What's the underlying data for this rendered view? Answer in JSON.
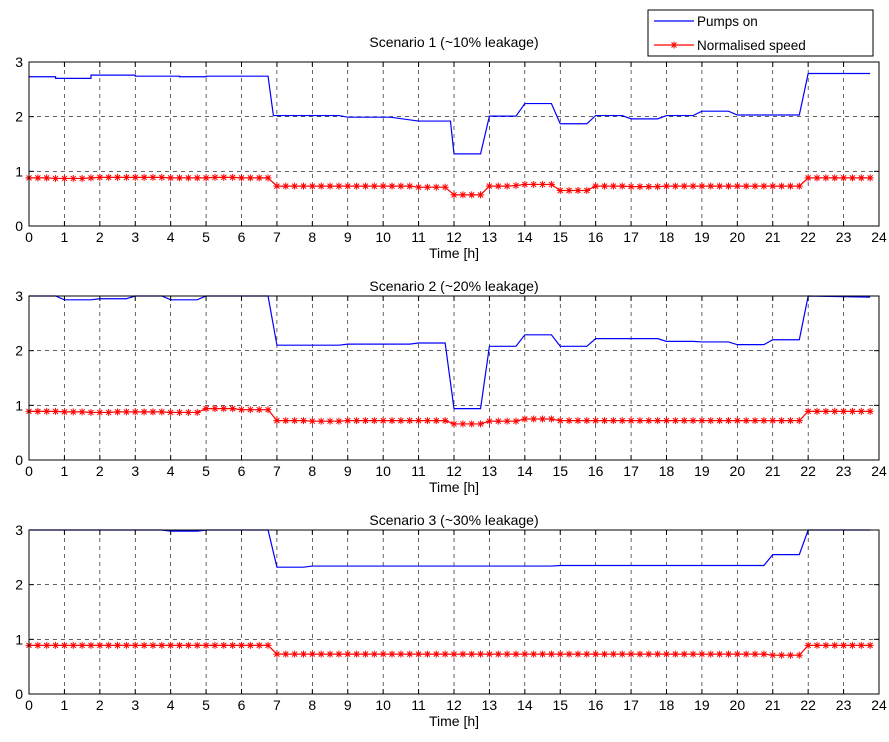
{
  "legend": {
    "placement": "top-right",
    "entries": [
      {
        "label": "Pumps on",
        "color": "#0000ff",
        "marker": "none"
      },
      {
        "label": "Normalised speed",
        "color": "#ff0000",
        "marker": "star"
      }
    ]
  },
  "chart_data": [
    {
      "type": "line",
      "title": "Scenario 1 (~10% leakage)",
      "xlabel": "Time [h]",
      "ylabel": "",
      "xlim": [
        0,
        24
      ],
      "ylim": [
        0,
        3
      ],
      "grid": true,
      "xticks": [
        0,
        1,
        2,
        3,
        4,
        5,
        6,
        7,
        8,
        9,
        10,
        11,
        12,
        13,
        14,
        15,
        16,
        17,
        18,
        19,
        20,
        21,
        22,
        23,
        24
      ],
      "yticks": [
        0,
        1,
        2,
        3
      ],
      "series": [
        {
          "name": "Pumps on",
          "color": "#0000ff",
          "x": [
            0,
            0.75,
            0.75,
            1.75,
            1.75,
            3,
            3,
            4.25,
            4.25,
            5,
            5,
            6.75,
            6.9,
            7,
            8,
            8.75,
            9,
            10.2,
            11,
            11.9,
            12,
            12.75,
            13,
            13.75,
            14,
            14.75,
            15,
            15.75,
            16,
            16.75,
            17,
            17.75,
            18,
            18.75,
            19,
            19.75,
            20,
            21,
            21.75,
            22,
            23.75
          ],
          "y": [
            2.73,
            2.73,
            2.7,
            2.7,
            2.76,
            2.76,
            2.74,
            2.74,
            2.73,
            2.73,
            2.74,
            2.74,
            2.02,
            2.02,
            2.02,
            2.02,
            1.99,
            1.99,
            1.92,
            1.92,
            1.32,
            1.32,
            2.01,
            2.01,
            2.24,
            2.24,
            1.87,
            1.87,
            2.02,
            2.02,
            1.96,
            1.96,
            2.02,
            2.02,
            2.1,
            2.1,
            2.03,
            2.03,
            2.03,
            2.79,
            2.79
          ]
        },
        {
          "name": "Normalised speed",
          "color": "#ff0000",
          "x": [
            0,
            0.25,
            0.5,
            0.75,
            1,
            1.25,
            1.5,
            1.75,
            2,
            2.25,
            2.5,
            2.75,
            3,
            3.25,
            3.5,
            3.75,
            4,
            4.25,
            4.5,
            4.75,
            5,
            5.25,
            5.5,
            5.75,
            6,
            6.25,
            6.5,
            6.75,
            7,
            7.25,
            7.5,
            7.75,
            8,
            8.25,
            8.5,
            8.75,
            9,
            9.25,
            9.5,
            9.75,
            10,
            10.25,
            10.5,
            10.75,
            11,
            11.25,
            11.5,
            11.75,
            12,
            12.25,
            12.5,
            12.75,
            13,
            13.25,
            13.5,
            13.75,
            14,
            14.25,
            14.5,
            14.75,
            15,
            15.25,
            15.5,
            15.75,
            16,
            16.25,
            16.5,
            16.75,
            17,
            17.25,
            17.5,
            17.75,
            18,
            18.25,
            18.5,
            18.75,
            19,
            19.25,
            19.5,
            19.75,
            20,
            20.25,
            20.5,
            20.75,
            21,
            21.25,
            21.5,
            21.75,
            22,
            22.25,
            22.5,
            22.75,
            23,
            23.25,
            23.5,
            23.75
          ],
          "y": [
            0.88,
            0.88,
            0.88,
            0.87,
            0.87,
            0.87,
            0.87,
            0.88,
            0.89,
            0.89,
            0.89,
            0.89,
            0.89,
            0.89,
            0.89,
            0.89,
            0.88,
            0.88,
            0.88,
            0.88,
            0.88,
            0.89,
            0.89,
            0.89,
            0.88,
            0.88,
            0.88,
            0.88,
            0.73,
            0.73,
            0.73,
            0.73,
            0.73,
            0.73,
            0.73,
            0.73,
            0.73,
            0.73,
            0.73,
            0.73,
            0.73,
            0.73,
            0.73,
            0.73,
            0.71,
            0.71,
            0.71,
            0.71,
            0.57,
            0.57,
            0.57,
            0.57,
            0.73,
            0.73,
            0.73,
            0.74,
            0.76,
            0.76,
            0.76,
            0.76,
            0.65,
            0.65,
            0.65,
            0.65,
            0.73,
            0.73,
            0.73,
            0.73,
            0.72,
            0.72,
            0.72,
            0.72,
            0.73,
            0.73,
            0.73,
            0.73,
            0.73,
            0.73,
            0.73,
            0.73,
            0.73,
            0.73,
            0.73,
            0.73,
            0.73,
            0.73,
            0.73,
            0.73,
            0.88,
            0.88,
            0.88,
            0.88,
            0.88,
            0.88,
            0.88,
            0.88
          ]
        }
      ]
    },
    {
      "type": "line",
      "title": "Scenario 2 (~20% leakage)",
      "xlabel": "Time [h]",
      "ylabel": "",
      "xlim": [
        0,
        24
      ],
      "ylim": [
        0,
        3
      ],
      "grid": true,
      "xticks": [
        0,
        1,
        2,
        3,
        4,
        5,
        6,
        7,
        8,
        9,
        10,
        11,
        12,
        13,
        14,
        15,
        16,
        17,
        18,
        19,
        20,
        21,
        22,
        23,
        24
      ],
      "yticks": [
        0,
        1,
        2,
        3
      ],
      "series": [
        {
          "name": "Pumps on",
          "color": "#0000ff",
          "x": [
            0,
            0.75,
            1,
            1.75,
            2,
            2.75,
            3,
            3.75,
            4,
            4.75,
            5,
            6.75,
            7,
            8,
            8.75,
            9,
            9.75,
            10,
            10.75,
            11,
            11.75,
            12,
            12.75,
            13,
            13.75,
            14,
            14.75,
            15,
            15.75,
            16,
            16.75,
            17,
            17.75,
            18,
            18.75,
            19,
            19.75,
            20,
            20.75,
            21,
            21.75,
            22,
            23.75
          ],
          "y": [
            3,
            3,
            2.93,
            2.93,
            2.95,
            2.95,
            3,
            3,
            2.93,
            2.93,
            3,
            3,
            2.1,
            2.1,
            2.1,
            2.12,
            2.12,
            2.12,
            2.12,
            2.14,
            2.14,
            0.94,
            0.94,
            2.08,
            2.08,
            2.29,
            2.29,
            2.08,
            2.08,
            2.22,
            2.22,
            2.22,
            2.22,
            2.17,
            2.17,
            2.16,
            2.16,
            2.11,
            2.11,
            2.2,
            2.2,
            3,
            2.98
          ]
        },
        {
          "name": "Normalised speed",
          "color": "#ff0000",
          "x": [
            0,
            0.25,
            0.5,
            0.75,
            1,
            1.25,
            1.5,
            1.75,
            2,
            2.25,
            2.5,
            2.75,
            3,
            3.25,
            3.5,
            3.75,
            4,
            4.25,
            4.5,
            4.75,
            5,
            5.25,
            5.5,
            5.75,
            6,
            6.25,
            6.5,
            6.75,
            7,
            7.25,
            7.5,
            7.75,
            8,
            8.25,
            8.5,
            8.75,
            9,
            9.25,
            9.5,
            9.75,
            10,
            10.25,
            10.5,
            10.75,
            11,
            11.25,
            11.5,
            11.75,
            12,
            12.25,
            12.5,
            12.75,
            13,
            13.25,
            13.5,
            13.75,
            14,
            14.25,
            14.5,
            14.75,
            15,
            15.25,
            15.5,
            15.75,
            16,
            16.25,
            16.5,
            16.75,
            17,
            17.25,
            17.5,
            17.75,
            18,
            18.25,
            18.5,
            18.75,
            19,
            19.25,
            19.5,
            19.75,
            20,
            20.25,
            20.5,
            20.75,
            21,
            21.25,
            21.5,
            21.75,
            22,
            22.25,
            22.5,
            22.75,
            23,
            23.25,
            23.5,
            23.75
          ],
          "y": [
            0.89,
            0.89,
            0.89,
            0.89,
            0.88,
            0.88,
            0.88,
            0.87,
            0.87,
            0.87,
            0.88,
            0.88,
            0.88,
            0.88,
            0.88,
            0.88,
            0.87,
            0.87,
            0.87,
            0.87,
            0.94,
            0.94,
            0.94,
            0.94,
            0.92,
            0.92,
            0.92,
            0.92,
            0.72,
            0.72,
            0.72,
            0.72,
            0.71,
            0.71,
            0.71,
            0.71,
            0.72,
            0.72,
            0.72,
            0.72,
            0.72,
            0.72,
            0.72,
            0.72,
            0.72,
            0.72,
            0.72,
            0.72,
            0.66,
            0.66,
            0.66,
            0.66,
            0.71,
            0.71,
            0.71,
            0.71,
            0.75,
            0.75,
            0.75,
            0.75,
            0.72,
            0.72,
            0.72,
            0.72,
            0.72,
            0.72,
            0.72,
            0.72,
            0.72,
            0.72,
            0.72,
            0.72,
            0.72,
            0.72,
            0.72,
            0.72,
            0.72,
            0.72,
            0.72,
            0.72,
            0.72,
            0.72,
            0.72,
            0.72,
            0.72,
            0.72,
            0.72,
            0.72,
            0.89,
            0.89,
            0.89,
            0.89,
            0.89,
            0.89,
            0.89,
            0.89
          ]
        }
      ]
    },
    {
      "type": "line",
      "title": "Scenario 3 (~30% leakage)",
      "xlabel": "Time [h]",
      "ylabel": "",
      "xlim": [
        0,
        24
      ],
      "ylim": [
        0,
        3
      ],
      "grid": true,
      "xticks": [
        0,
        1,
        2,
        3,
        4,
        5,
        6,
        7,
        8,
        9,
        10,
        11,
        12,
        13,
        14,
        15,
        16,
        17,
        18,
        19,
        20,
        21,
        22,
        23,
        24
      ],
      "yticks": [
        0,
        1,
        2,
        3
      ],
      "series": [
        {
          "name": "Pumps on",
          "color": "#0000ff",
          "x": [
            0,
            3.75,
            4,
            4.75,
            5,
            6.75,
            7,
            7.75,
            8,
            14.75,
            15,
            20.75,
            21,
            21.75,
            22,
            23.75
          ],
          "y": [
            3,
            3,
            2.98,
            2.98,
            3,
            3,
            2.32,
            2.32,
            2.34,
            2.34,
            2.35,
            2.35,
            2.55,
            2.55,
            3,
            3
          ]
        },
        {
          "name": "Normalised speed",
          "color": "#ff0000",
          "x": [
            0,
            0.25,
            0.5,
            0.75,
            1,
            1.25,
            1.5,
            1.75,
            2,
            2.25,
            2.5,
            2.75,
            3,
            3.25,
            3.5,
            3.75,
            4,
            4.25,
            4.5,
            4.75,
            5,
            5.25,
            5.5,
            5.75,
            6,
            6.25,
            6.5,
            6.75,
            7,
            7.25,
            7.5,
            7.75,
            8,
            8.25,
            8.5,
            8.75,
            9,
            9.25,
            9.5,
            9.75,
            10,
            10.25,
            10.5,
            10.75,
            11,
            11.25,
            11.5,
            11.75,
            12,
            12.25,
            12.5,
            12.75,
            13,
            13.25,
            13.5,
            13.75,
            14,
            14.25,
            14.5,
            14.75,
            15,
            15.25,
            15.5,
            15.75,
            16,
            16.25,
            16.5,
            16.75,
            17,
            17.25,
            17.5,
            17.75,
            18,
            18.25,
            18.5,
            18.75,
            19,
            19.25,
            19.5,
            19.75,
            20,
            20.25,
            20.5,
            20.75,
            21,
            21.25,
            21.5,
            21.75,
            22,
            22.25,
            22.5,
            22.75,
            23,
            23.25,
            23.5,
            23.75
          ],
          "y": [
            0.89,
            0.89,
            0.89,
            0.89,
            0.89,
            0.89,
            0.89,
            0.89,
            0.89,
            0.89,
            0.89,
            0.89,
            0.89,
            0.89,
            0.89,
            0.89,
            0.89,
            0.89,
            0.89,
            0.89,
            0.89,
            0.89,
            0.89,
            0.89,
            0.89,
            0.89,
            0.89,
            0.89,
            0.73,
            0.73,
            0.73,
            0.73,
            0.73,
            0.73,
            0.73,
            0.73,
            0.73,
            0.73,
            0.73,
            0.73,
            0.73,
            0.73,
            0.73,
            0.73,
            0.73,
            0.73,
            0.73,
            0.73,
            0.73,
            0.73,
            0.73,
            0.73,
            0.73,
            0.73,
            0.73,
            0.73,
            0.73,
            0.73,
            0.73,
            0.73,
            0.73,
            0.73,
            0.73,
            0.73,
            0.73,
            0.73,
            0.73,
            0.73,
            0.73,
            0.73,
            0.73,
            0.73,
            0.73,
            0.73,
            0.73,
            0.73,
            0.73,
            0.73,
            0.73,
            0.73,
            0.73,
            0.73,
            0.73,
            0.73,
            0.71,
            0.71,
            0.71,
            0.71,
            0.89,
            0.89,
            0.89,
            0.89,
            0.89,
            0.89,
            0.89,
            0.89
          ]
        }
      ]
    }
  ]
}
